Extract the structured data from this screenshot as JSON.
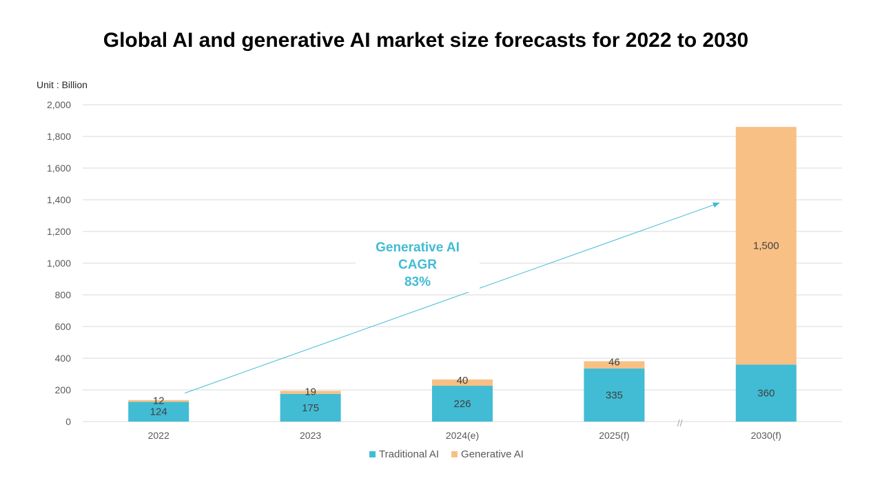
{
  "page": {
    "title": "Global AI and generative AI market size forecasts for 2022 to 2030",
    "unit_label": "Unit : Billion"
  },
  "chart_data": {
    "type": "bar",
    "stacked": true,
    "categories": [
      "2022",
      "2023",
      "2024(e)",
      "2025(f)",
      "2030(f)"
    ],
    "series": [
      {
        "name": "Traditional AI",
        "values": [
          124,
          175,
          226,
          335,
          360
        ],
        "color": "#41BCD4"
      },
      {
        "name": "Generative AI",
        "values": [
          12,
          19,
          40,
          46,
          1500
        ],
        "color": "#F8C085"
      }
    ],
    "ylim": [
      0,
      2000
    ],
    "yticks": [
      0,
      200,
      400,
      600,
      800,
      1000,
      1200,
      1400,
      1600,
      1800,
      2000
    ],
    "ytick_labels": [
      "0",
      "200",
      "400",
      "600",
      "800",
      "1,000",
      "1,200",
      "1,400",
      "1,600",
      "1,800",
      "2,000"
    ],
    "data_labels": [
      [
        "124",
        "175",
        "226",
        "335",
        "360"
      ],
      [
        "12",
        "19",
        "40",
        "46",
        "1,500"
      ]
    ],
    "grid": true,
    "legend_position": "bottom",
    "axis_break_symbol": "//",
    "annotation": {
      "lines": [
        "Generative AI",
        "CAGR",
        "83%"
      ],
      "color": "#41BCD4"
    }
  }
}
